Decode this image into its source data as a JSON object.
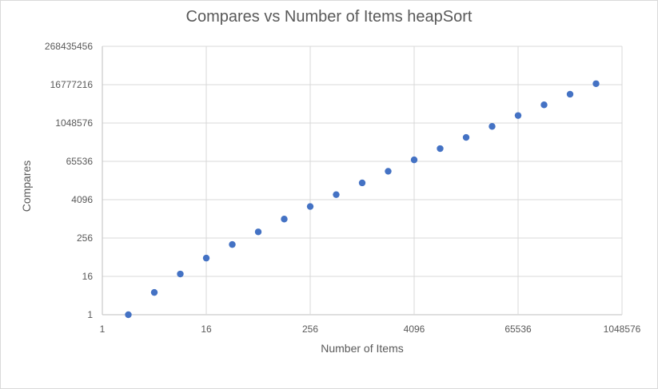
{
  "chart_data": {
    "type": "scatter",
    "title": "Compares vs Number of Items heapSort",
    "xlabel": "Number of Items",
    "ylabel": "Compares",
    "x_scale": "log2",
    "y_scale": "log2",
    "xlim": [
      1,
      1048576
    ],
    "ylim": [
      1,
      268435456
    ],
    "x_ticks": [
      "1",
      "16",
      "256",
      "4096",
      "65536",
      "1048576"
    ],
    "y_ticks": [
      "1",
      "16",
      "256",
      "4096",
      "65536",
      "1048576",
      "16777216",
      "268435456"
    ],
    "grid": true,
    "legend": "none",
    "marker_color": "#4472c4",
    "series": [
      {
        "x": [
          2,
          4,
          8,
          16,
          32,
          64,
          128,
          256,
          512,
          1024,
          2048,
          4096,
          8192,
          16384,
          32768,
          65536,
          131072,
          262144,
          524288
        ],
        "y": [
          1,
          5,
          19,
          60,
          160,
          400,
          1010,
          2500,
          5900,
          13800,
          32000,
          73000,
          165000,
          370000,
          820000,
          1800000,
          3900000,
          8400000,
          18000000
        ]
      }
    ]
  }
}
